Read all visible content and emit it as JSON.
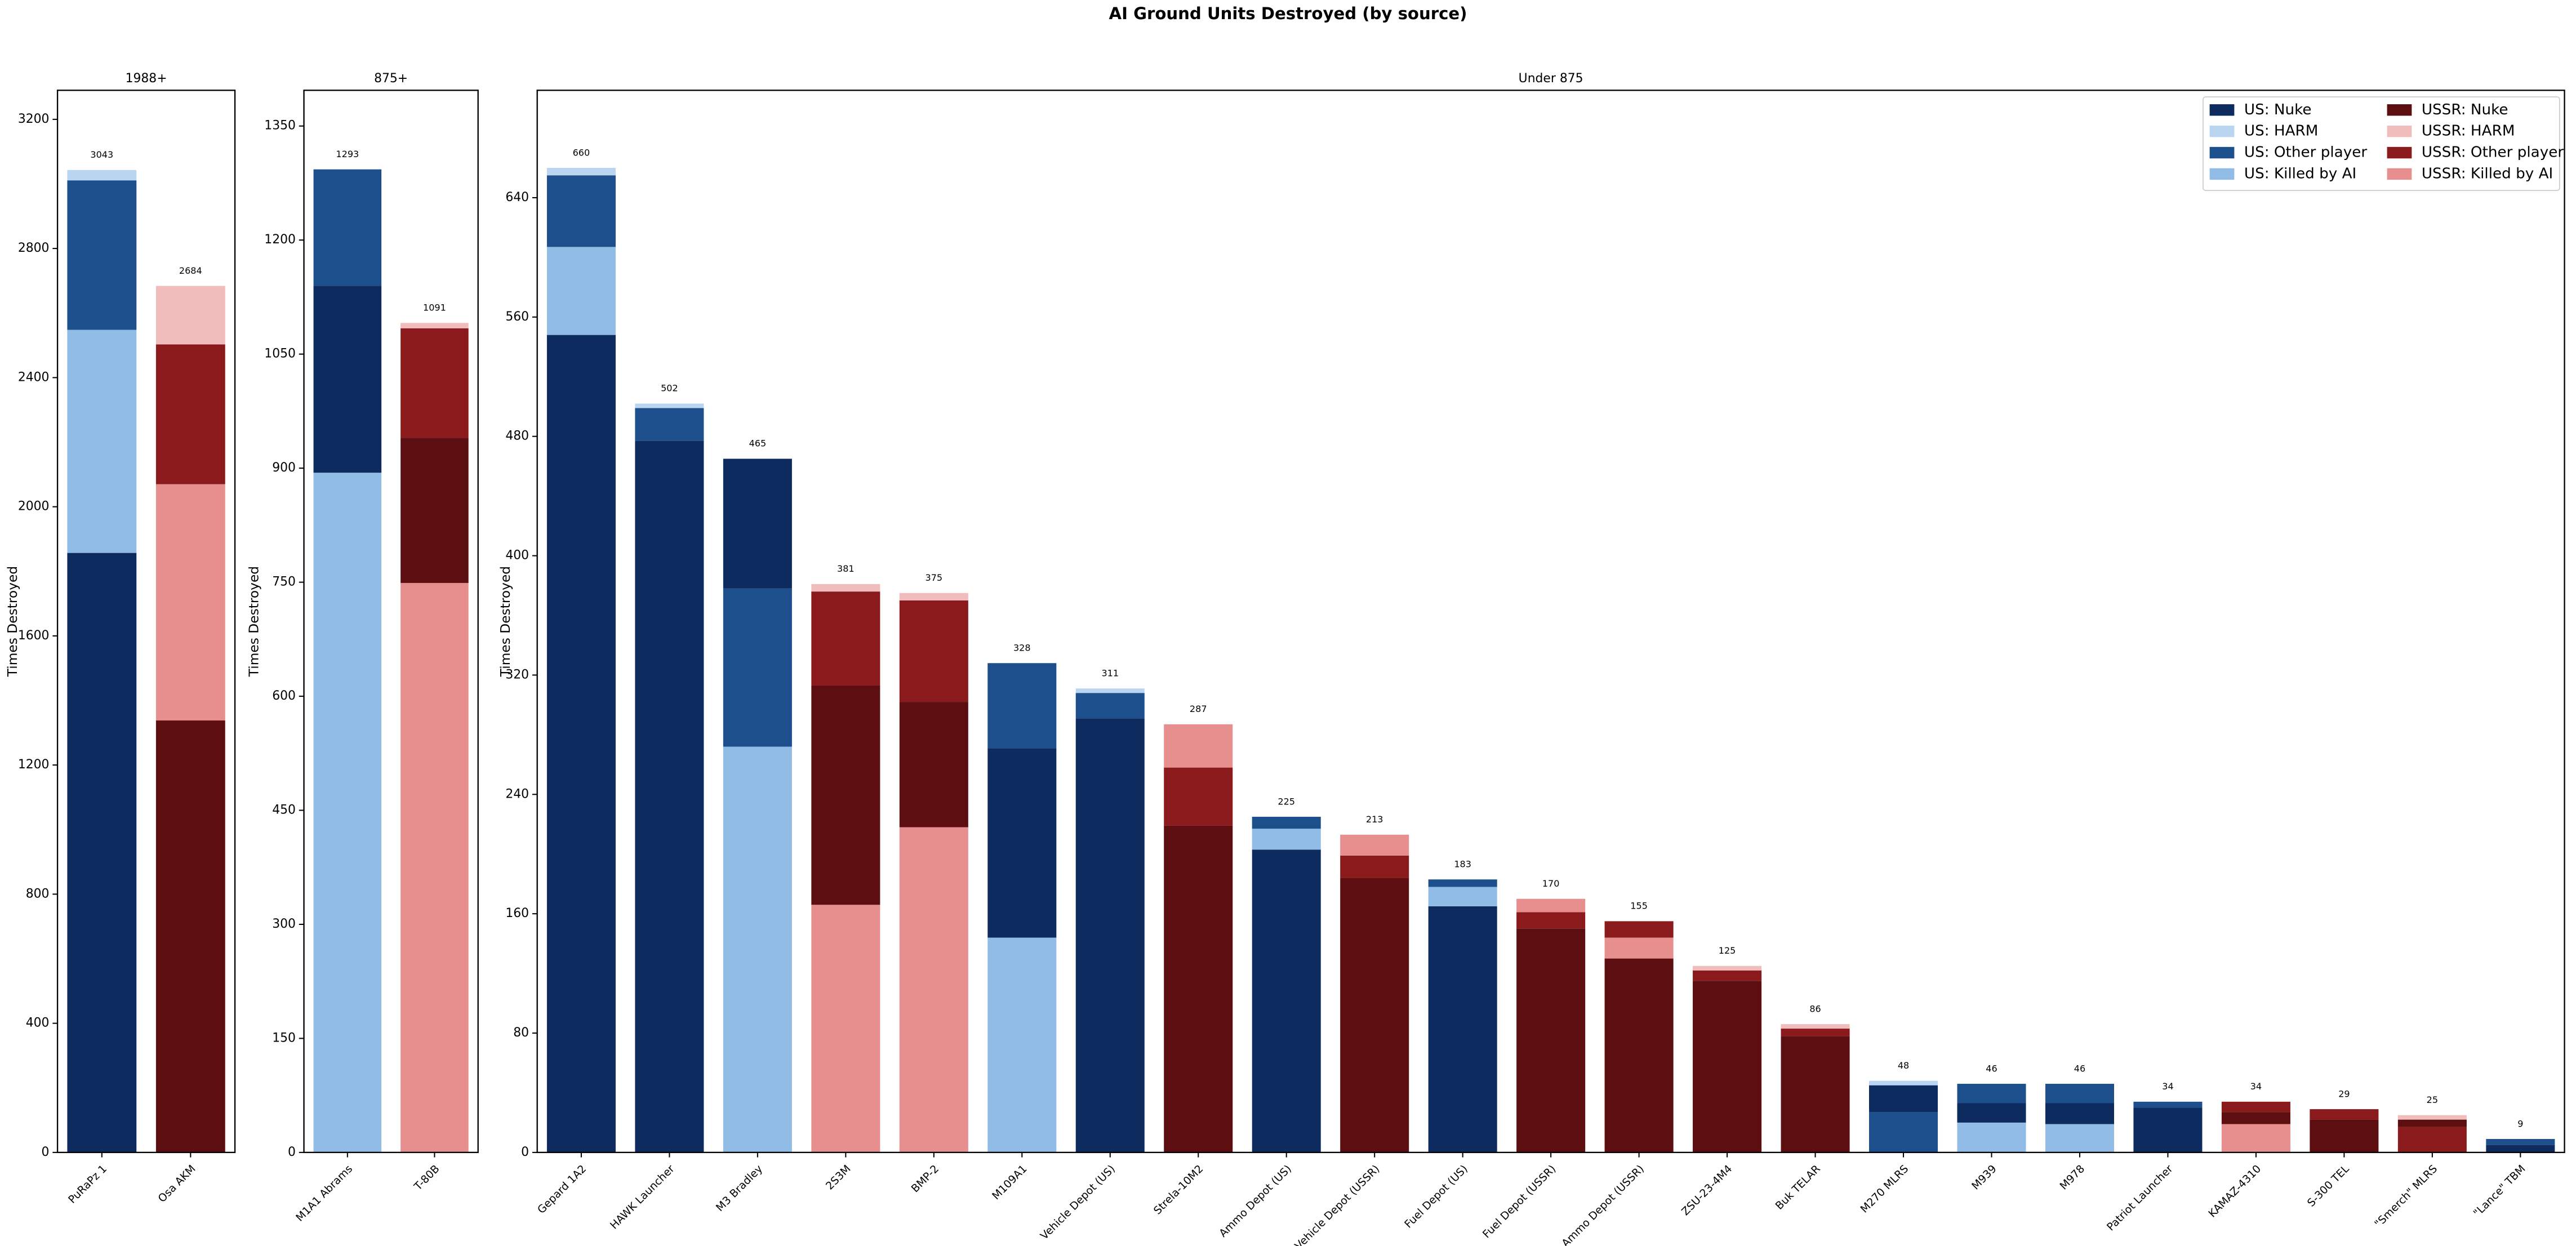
{
  "title": "AI Ground Units Destroyed (by source)",
  "chart_data": [
    {
      "type": "bar",
      "stacked": true,
      "title": "1988+",
      "y_label": "Times Destroyed",
      "categories": [
        "PuRaPz 1",
        "Osa AKM"
      ],
      "totals": [
        3043,
        2684
      ],
      "ylim": [
        0,
        3290
      ],
      "yticks": [
        0,
        400,
        800,
        1200,
        1600,
        2000,
        2400,
        2800,
        3200
      ],
      "series": [
        {
          "color": "#0d2b5e",
          "values": [
            1857,
            0
          ]
        },
        {
          "color": "#b9d5f0",
          "values": [
            32,
            0
          ]
        },
        {
          "color": "#1c4f8c",
          "values": [
            463,
            0
          ]
        },
        {
          "color": "#90bce6",
          "values": [
            691,
            0
          ]
        },
        {
          "color": "#5c0e10",
          "values": [
            0,
            1338
          ]
        },
        {
          "color": "#f0bcbc",
          "values": [
            0,
            181
          ]
        },
        {
          "color": "#8b1a1c",
          "values": [
            0,
            433
          ]
        },
        {
          "color": "#e78f8f",
          "values": [
            0,
            732
          ]
        }
      ]
    },
    {
      "type": "bar",
      "stacked": true,
      "title": "875+",
      "y_label": "Times Destroyed",
      "categories": [
        "M1A1 Abrams",
        "T-80B"
      ],
      "totals": [
        1293,
        1091
      ],
      "ylim": [
        0,
        1397
      ],
      "yticks": [
        0,
        150,
        300,
        450,
        600,
        750,
        900,
        1050,
        1200,
        1350
      ],
      "series": [
        {
          "color": "#0d2b5e",
          "values": [
            246,
            0
          ]
        },
        {
          "color": "#b9d5f0",
          "values": [
            0,
            0
          ]
        },
        {
          "color": "#1c4f8c",
          "values": [
            153,
            0
          ]
        },
        {
          "color": "#90bce6",
          "values": [
            894,
            0
          ]
        },
        {
          "color": "#5c0e10",
          "values": [
            0,
            191
          ]
        },
        {
          "color": "#f0bcbc",
          "values": [
            0,
            7
          ]
        },
        {
          "color": "#8b1a1c",
          "values": [
            0,
            144
          ]
        },
        {
          "color": "#e78f8f",
          "values": [
            0,
            749
          ]
        }
      ]
    },
    {
      "type": "bar",
      "stacked": true,
      "title": "Under 875",
      "y_label": "Times Destroyed",
      "categories": [
        "Gepard 1A2",
        "HAWK Launcher",
        "M3 Bradley",
        "2S3M",
        "BMP-2",
        "M109A1",
        "Vehicle Depot (US)",
        "Strela-10M2",
        "Ammo Depot (US)",
        "Vehicle Depot (USSR)",
        "Fuel Depot (US)",
        "Fuel Depot (USSR)",
        "Ammo Depot (USSR)",
        "ZSU-23-4M4",
        "Buk TELAR",
        "M270 MLRS",
        "M939",
        "M978",
        "Patriot Launcher",
        "KAMAZ-4310",
        "S-300 TEL",
        "\"Smerch\" MLRS",
        "\"Lance\" TBM"
      ],
      "totals": [
        660,
        502,
        465,
        381,
        375,
        328,
        311,
        287,
        225,
        213,
        183,
        170,
        155,
        125,
        86,
        48,
        46,
        46,
        34,
        34,
        29,
        25,
        9
      ],
      "ylim": [
        0,
        712
      ],
      "yticks": [
        0,
        80,
        160,
        240,
        320,
        400,
        480,
        560,
        640
      ],
      "legend": "upper right",
      "series": [
        {
          "name": "US: Nuke",
          "color": "#0d2b5e",
          "values": [
            548,
            477,
            87,
            0,
            0,
            127,
            291,
            0,
            203,
            0,
            165,
            0,
            0,
            0,
            0,
            18,
            13,
            14,
            30,
            0,
            0,
            0,
            5
          ]
        },
        {
          "name": "US: HARM",
          "color": "#b9d5f0",
          "values": [
            5,
            3,
            0,
            0,
            0,
            0,
            3,
            0,
            0,
            0,
            0,
            0,
            0,
            0,
            0,
            3,
            0,
            0,
            0,
            0,
            0,
            0,
            0
          ]
        },
        {
          "name": "US: Other player",
          "color": "#1c4f8c",
          "values": [
            48,
            22,
            106,
            0,
            0,
            57,
            17,
            0,
            8,
            0,
            5,
            0,
            0,
            0,
            0,
            27,
            13,
            13,
            4,
            0,
            0,
            0,
            4
          ]
        },
        {
          "name": "US: Killed by AI",
          "color": "#90bce6",
          "values": [
            59,
            0,
            272,
            0,
            0,
            144,
            0,
            0,
            14,
            0,
            13,
            0,
            0,
            0,
            0,
            0,
            20,
            19,
            0,
            0,
            0,
            0,
            0
          ]
        },
        {
          "name": "USSR: Nuke",
          "color": "#5c0e10",
          "values": [
            0,
            0,
            0,
            147,
            84,
            0,
            0,
            219,
            0,
            184,
            0,
            150,
            130,
            115,
            78,
            0,
            0,
            0,
            0,
            8,
            22,
            5,
            0
          ]
        },
        {
          "name": "USSR: HARM",
          "color": "#f0bcbc",
          "values": [
            0,
            0,
            0,
            5,
            5,
            0,
            0,
            0,
            0,
            0,
            0,
            0,
            0,
            3,
            3,
            0,
            0,
            0,
            0,
            0,
            0,
            3,
            0
          ]
        },
        {
          "name": "USSR: Other player",
          "color": "#8b1a1c",
          "values": [
            0,
            0,
            0,
            63,
            68,
            0,
            0,
            39,
            0,
            15,
            0,
            11,
            11,
            7,
            5,
            0,
            0,
            0,
            0,
            7,
            7,
            17,
            0
          ]
        },
        {
          "name": "USSR: Killed by AI",
          "color": "#e78f8f",
          "values": [
            0,
            0,
            0,
            166,
            218,
            0,
            0,
            29,
            0,
            14,
            0,
            9,
            14,
            0,
            0,
            0,
            0,
            0,
            0,
            19,
            0,
            0,
            0
          ]
        }
      ]
    }
  ]
}
